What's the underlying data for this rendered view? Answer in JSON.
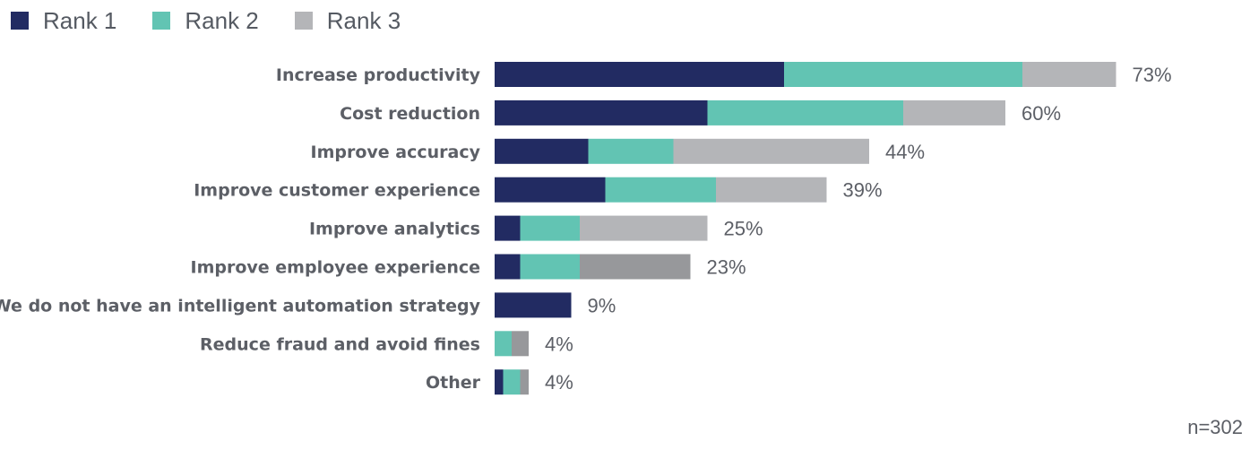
{
  "chart_data": {
    "type": "bar",
    "orientation": "horizontal",
    "stacked": true,
    "categories": [
      "Increase productivity",
      "Cost reduction",
      "Improve accuracy",
      "Improve customer experience",
      "Improve analytics",
      "Improve employee experience",
      "We do not have an intelligent automation strategy",
      "Reduce fraud and avoid fines",
      "Other"
    ],
    "series": [
      {
        "name": "Rank 1",
        "color": "#222b62",
        "values": [
          34,
          25,
          11,
          13,
          3,
          3,
          9,
          0,
          1
        ]
      },
      {
        "name": "Rank 2",
        "color": "#62c4b3",
        "values": [
          28,
          23,
          10,
          13,
          7,
          7,
          0,
          2,
          2
        ]
      },
      {
        "name": "Rank 3",
        "color": "#b4b5b8",
        "values": [
          11,
          12,
          23,
          13,
          15,
          13,
          0,
          2,
          1
        ]
      }
    ],
    "totals": [
      "73%",
      "60%",
      "44%",
      "39%",
      "25%",
      "23%",
      "9%",
      "4%",
      "4%"
    ],
    "legend_position": "top-left",
    "grid": false,
    "xlim": [
      0,
      100
    ]
  },
  "footnote": "n=302"
}
